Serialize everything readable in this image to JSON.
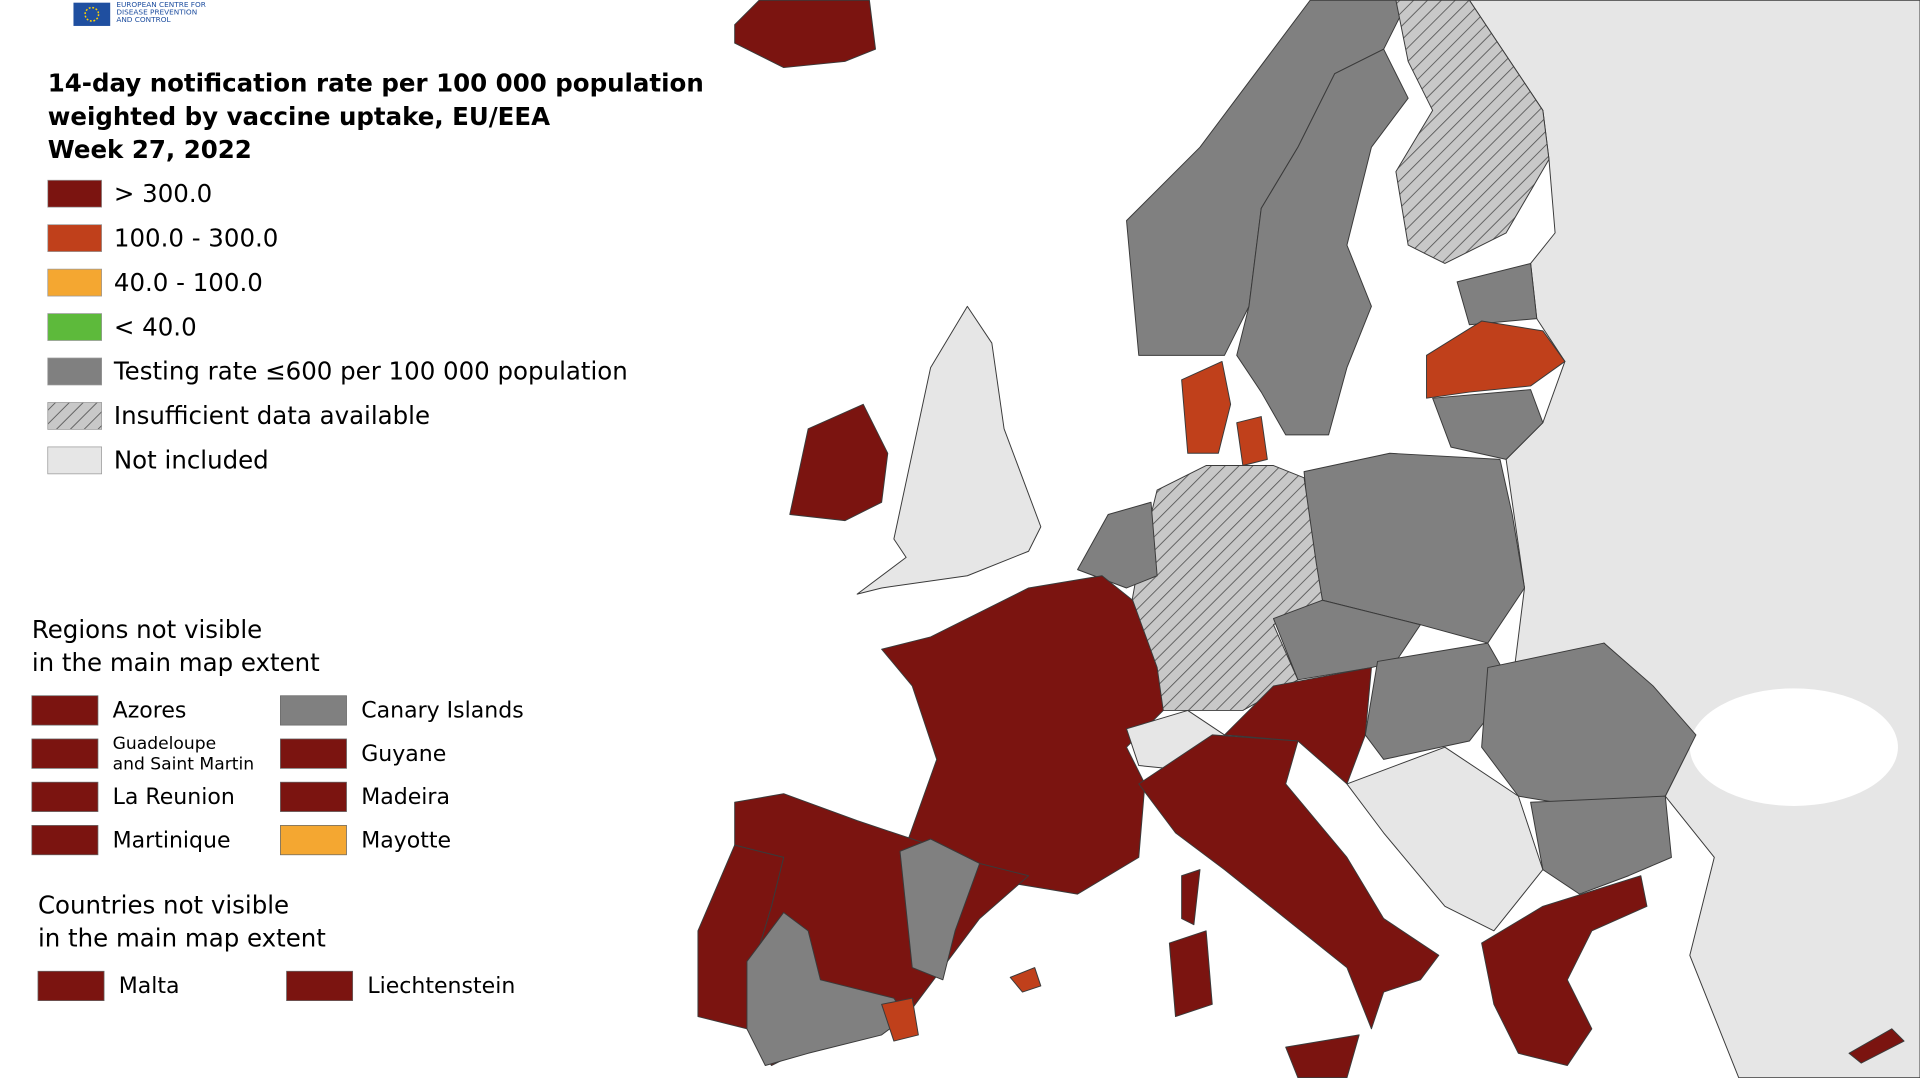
{
  "header": {
    "logo_lines": [
      "EUROPEAN CENTRE FOR",
      "DISEASE PREVENTION",
      "AND CONTROL"
    ],
    "title_lines": [
      "14-day notification rate per 100 000 population",
      "weighted by vaccine uptake, EU/EEA",
      "Week 27, 2022"
    ]
  },
  "legend": {
    "items": [
      {
        "label": "> 300.0",
        "color": "#7b1410",
        "hatched": false
      },
      {
        "label": "100.0 - 300.0",
        "color": "#c0401b",
        "hatched": false
      },
      {
        "label": "40.0 - 100.0",
        "color": "#f4a731",
        "hatched": false
      },
      {
        "label": "< 40.0",
        "color": "#5dba3b",
        "hatched": false
      },
      {
        "label": "Testing rate ≤600 per 100 000 population",
        "color": "#808080",
        "hatched": false
      },
      {
        "label": "Insufficient data available",
        "color": "#c8c8c8",
        "hatched": true
      },
      {
        "label": "Not included",
        "color": "#e6e6e6",
        "hatched": false
      }
    ]
  },
  "regions_box": {
    "title_lines": [
      "Regions not visible",
      "in the main map extent"
    ],
    "items": [
      {
        "label": "Azores",
        "color": "#7b1410"
      },
      {
        "label": "Guadeloupe and Saint Martin",
        "color": "#7b1410"
      },
      {
        "label": "La Reunion",
        "color": "#7b1410"
      },
      {
        "label": "Martinique",
        "color": "#7b1410"
      },
      {
        "label": "Canary Islands",
        "color": "#808080"
      },
      {
        "label": "Guyane",
        "color": "#7b1410"
      },
      {
        "label": "Madeira",
        "color": "#7b1410"
      },
      {
        "label": "Mayotte",
        "color": "#f4a731"
      }
    ]
  },
  "countries_box": {
    "title_lines": [
      "Countries not visible",
      "in the main map extent"
    ],
    "items": [
      {
        "label": "Malta",
        "color": "#7b1410"
      },
      {
        "label": "Liechtenstein",
        "color": "#7b1410"
      }
    ]
  }
}
